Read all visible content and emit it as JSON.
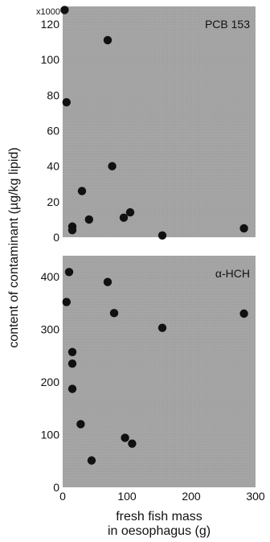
{
  "chart_data": [
    {
      "type": "scatter",
      "panel_label": "PCB 153",
      "y_multiplier": "x1000",
      "xlim": [
        0,
        300
      ],
      "ylim": [
        0,
        130
      ],
      "yticks": [
        0,
        20,
        40,
        60,
        80,
        100,
        120
      ],
      "points": [
        {
          "x": 3,
          "y": 128
        },
        {
          "x": 70,
          "y": 111
        },
        {
          "x": 6,
          "y": 76
        },
        {
          "x": 77,
          "y": 40
        },
        {
          "x": 30,
          "y": 26
        },
        {
          "x": 41,
          "y": 10
        },
        {
          "x": 15,
          "y": 6
        },
        {
          "x": 15,
          "y": 4
        },
        {
          "x": 95,
          "y": 11
        },
        {
          "x": 105,
          "y": 14
        },
        {
          "x": 155,
          "y": 1
        },
        {
          "x": 282,
          "y": 5
        }
      ]
    },
    {
      "type": "scatter",
      "panel_label": "α-HCH",
      "xlim": [
        0,
        300
      ],
      "ylim": [
        0,
        440
      ],
      "xticks": [
        0,
        100,
        200,
        300
      ],
      "yticks": [
        0,
        100,
        200,
        300,
        400
      ],
      "points": [
        {
          "x": 10,
          "y": 409
        },
        {
          "x": 6,
          "y": 352
        },
        {
          "x": 70,
          "y": 390
        },
        {
          "x": 80,
          "y": 331
        },
        {
          "x": 155,
          "y": 303
        },
        {
          "x": 282,
          "y": 330
        },
        {
          "x": 15,
          "y": 257
        },
        {
          "x": 15,
          "y": 235
        },
        {
          "x": 15,
          "y": 187
        },
        {
          "x": 28,
          "y": 120
        },
        {
          "x": 45,
          "y": 51
        },
        {
          "x": 97,
          "y": 94
        },
        {
          "x": 108,
          "y": 83
        }
      ]
    }
  ],
  "axes": {
    "ylabel": "content of contaminant (µg/kg lipid)",
    "xlabel_line1": "fresh fish mass",
    "xlabel_line2": "in oesophagus (g)"
  },
  "colors": {
    "panel_fill": "#a8a8a8",
    "point": "#111111"
  }
}
